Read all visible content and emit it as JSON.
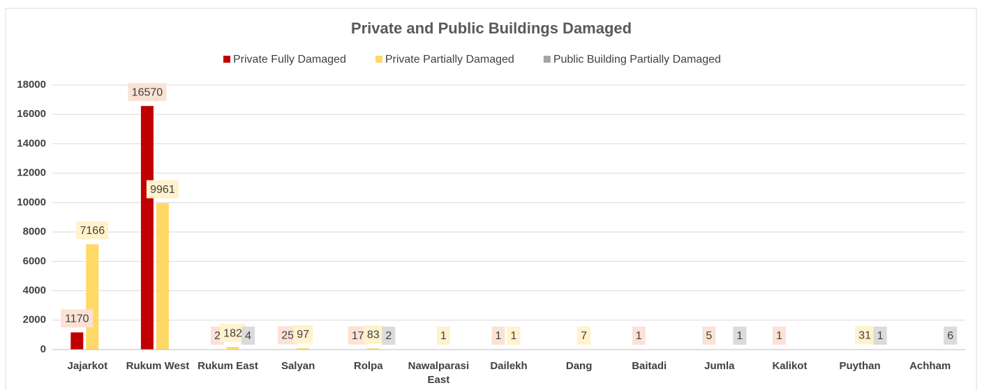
{
  "chart_data": {
    "type": "bar",
    "title": "Private and Public Buildings Damaged",
    "categories": [
      "Jajarkot",
      "Rukum West",
      "Rukum East",
      "Salyan",
      "Rolpa",
      "Nawalparasi East",
      "Dailekh",
      "Dang",
      "Baitadi",
      "Jumla",
      "Kalikot",
      "Puythan",
      "Achham"
    ],
    "series": [
      {
        "name": "Private Fully Damaged",
        "color": "#c00000",
        "label_color": "#fbe2d5",
        "values": [
          1170,
          16570,
          2,
          25,
          17,
          null,
          1,
          null,
          1,
          5,
          1,
          null,
          null
        ]
      },
      {
        "name": "Private Partially Damaged",
        "color": "#ffd966",
        "label_color": "#fff2cc",
        "values": [
          7166,
          9961,
          182,
          97,
          83,
          1,
          1,
          7,
          null,
          null,
          null,
          31,
          null
        ]
      },
      {
        "name": "Public Building Partially Damaged",
        "color": "#a5a5a5",
        "label_color": "#dbdbdb",
        "values": [
          null,
          null,
          4,
          null,
          2,
          null,
          null,
          null,
          null,
          1,
          null,
          1,
          6
        ]
      }
    ],
    "ylim": [
      0,
      18000
    ],
    "yticks": [
      0,
      2000,
      4000,
      6000,
      8000,
      10000,
      12000,
      14000,
      16000,
      18000
    ],
    "grid": true
  }
}
